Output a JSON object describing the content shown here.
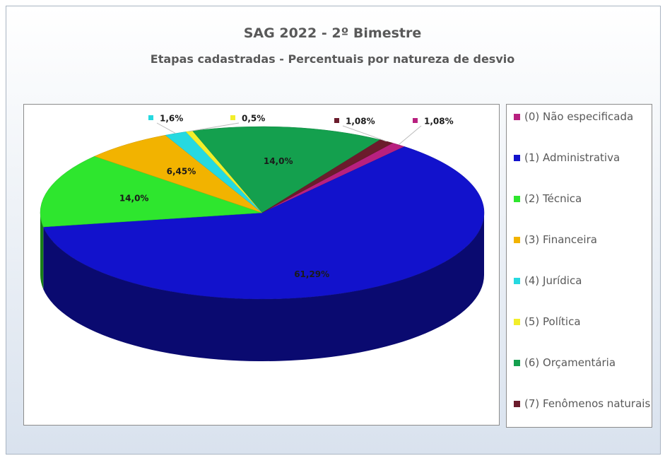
{
  "chart_data": {
    "type": "pie",
    "title": "SAG 2022 - 2º Bimestre",
    "subtitle": "Etapas cadastradas - Percentuais por natureza de desvio",
    "categories": [
      "(0) Não especificada",
      "(1) Administrativa",
      "(2) Técnica",
      "(3) Financeira",
      "(4) Jurídica",
      "(5) Política",
      "(6) Orçamentária",
      "(7) Fenômenos naturais"
    ],
    "values": [
      1.08,
      61.29,
      14.0,
      6.45,
      1.6,
      0.5,
      14.0,
      1.08
    ],
    "value_labels": [
      "1,08%",
      "61,29%",
      "14,0%",
      "6,45%",
      "1,6%",
      "0,5%",
      "14,0%",
      "1,08%"
    ],
    "colors": [
      "#b8207f",
      "#1212cc",
      "#2ee62e",
      "#f2b300",
      "#26d9e0",
      "#f2ee2a",
      "#14a04e",
      "#6b1c2c"
    ],
    "legend": "right"
  }
}
